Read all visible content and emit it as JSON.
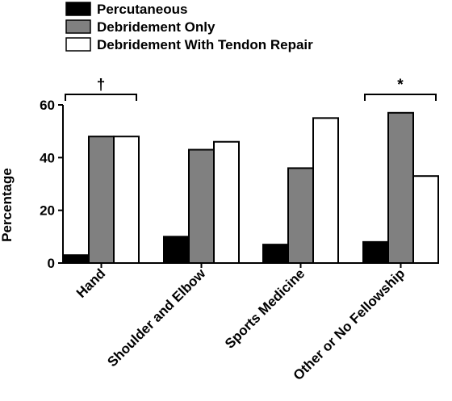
{
  "chart_data": {
    "type": "bar",
    "title": "",
    "xlabel": "",
    "ylabel": "Percentage",
    "ylim": [
      0,
      60
    ],
    "yticks": [
      "0",
      "20",
      "40",
      "60"
    ],
    "categories": [
      "Hand",
      "Shoulder and Elbow",
      "Sports Medicine",
      "Other or No Fellowship"
    ],
    "series": [
      {
        "name": "Percutaneous",
        "color": "#000000",
        "values": [
          3,
          10,
          7,
          8
        ]
      },
      {
        "name": "Debridement Only",
        "color": "#808080",
        "values": [
          48,
          43,
          36,
          57
        ]
      },
      {
        "name": "Debridement With Tendon Repair",
        "color": "#ffffff",
        "values": [
          48,
          46,
          55,
          33
        ]
      }
    ],
    "legend_position": "top",
    "annotations": [
      {
        "category": "Hand",
        "symbol": "†"
      },
      {
        "category": "Other or No Fellowship",
        "symbol": "*"
      }
    ],
    "grid": false
  }
}
